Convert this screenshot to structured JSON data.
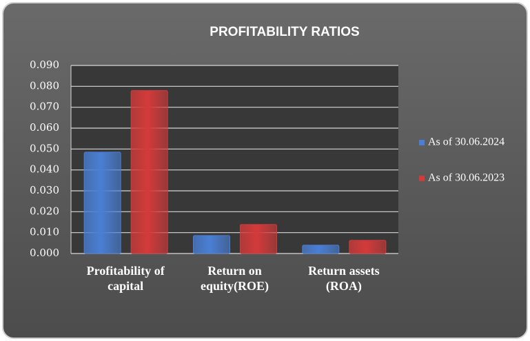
{
  "chart_data": {
    "type": "bar",
    "title": "PROFITABILITY RATIOS",
    "categories": [
      "Profitability of capital",
      "Return on equity(ROE)",
      "Return assets (ROA)"
    ],
    "series": [
      {
        "name": "As of 30.06.2024",
        "color": "#4a7fd4",
        "values": [
          0.0485,
          0.0086,
          0.004
        ]
      },
      {
        "name": "As of 30.06.2023",
        "color": "#d43a3a",
        "values": [
          0.078,
          0.0139,
          0.0063
        ]
      }
    ],
    "ylim": [
      0,
      0.09
    ],
    "yticks": [
      {
        "value": 0,
        "label": "0.000"
      },
      {
        "value": 0.01,
        "label": "0.010"
      },
      {
        "value": 0.02,
        "label": "0.020"
      },
      {
        "value": 0.03,
        "label": "0.030"
      },
      {
        "value": 0.04,
        "label": "0.040"
      },
      {
        "value": 0.05,
        "label": "0.050"
      },
      {
        "value": 0.06,
        "label": "0.060"
      },
      {
        "value": 0.07,
        "label": "0.070"
      },
      {
        "value": 0.08,
        "label": "0.080"
      },
      {
        "value": 0.09,
        "label": "0.090"
      }
    ],
    "grid": true,
    "legend": "right"
  }
}
